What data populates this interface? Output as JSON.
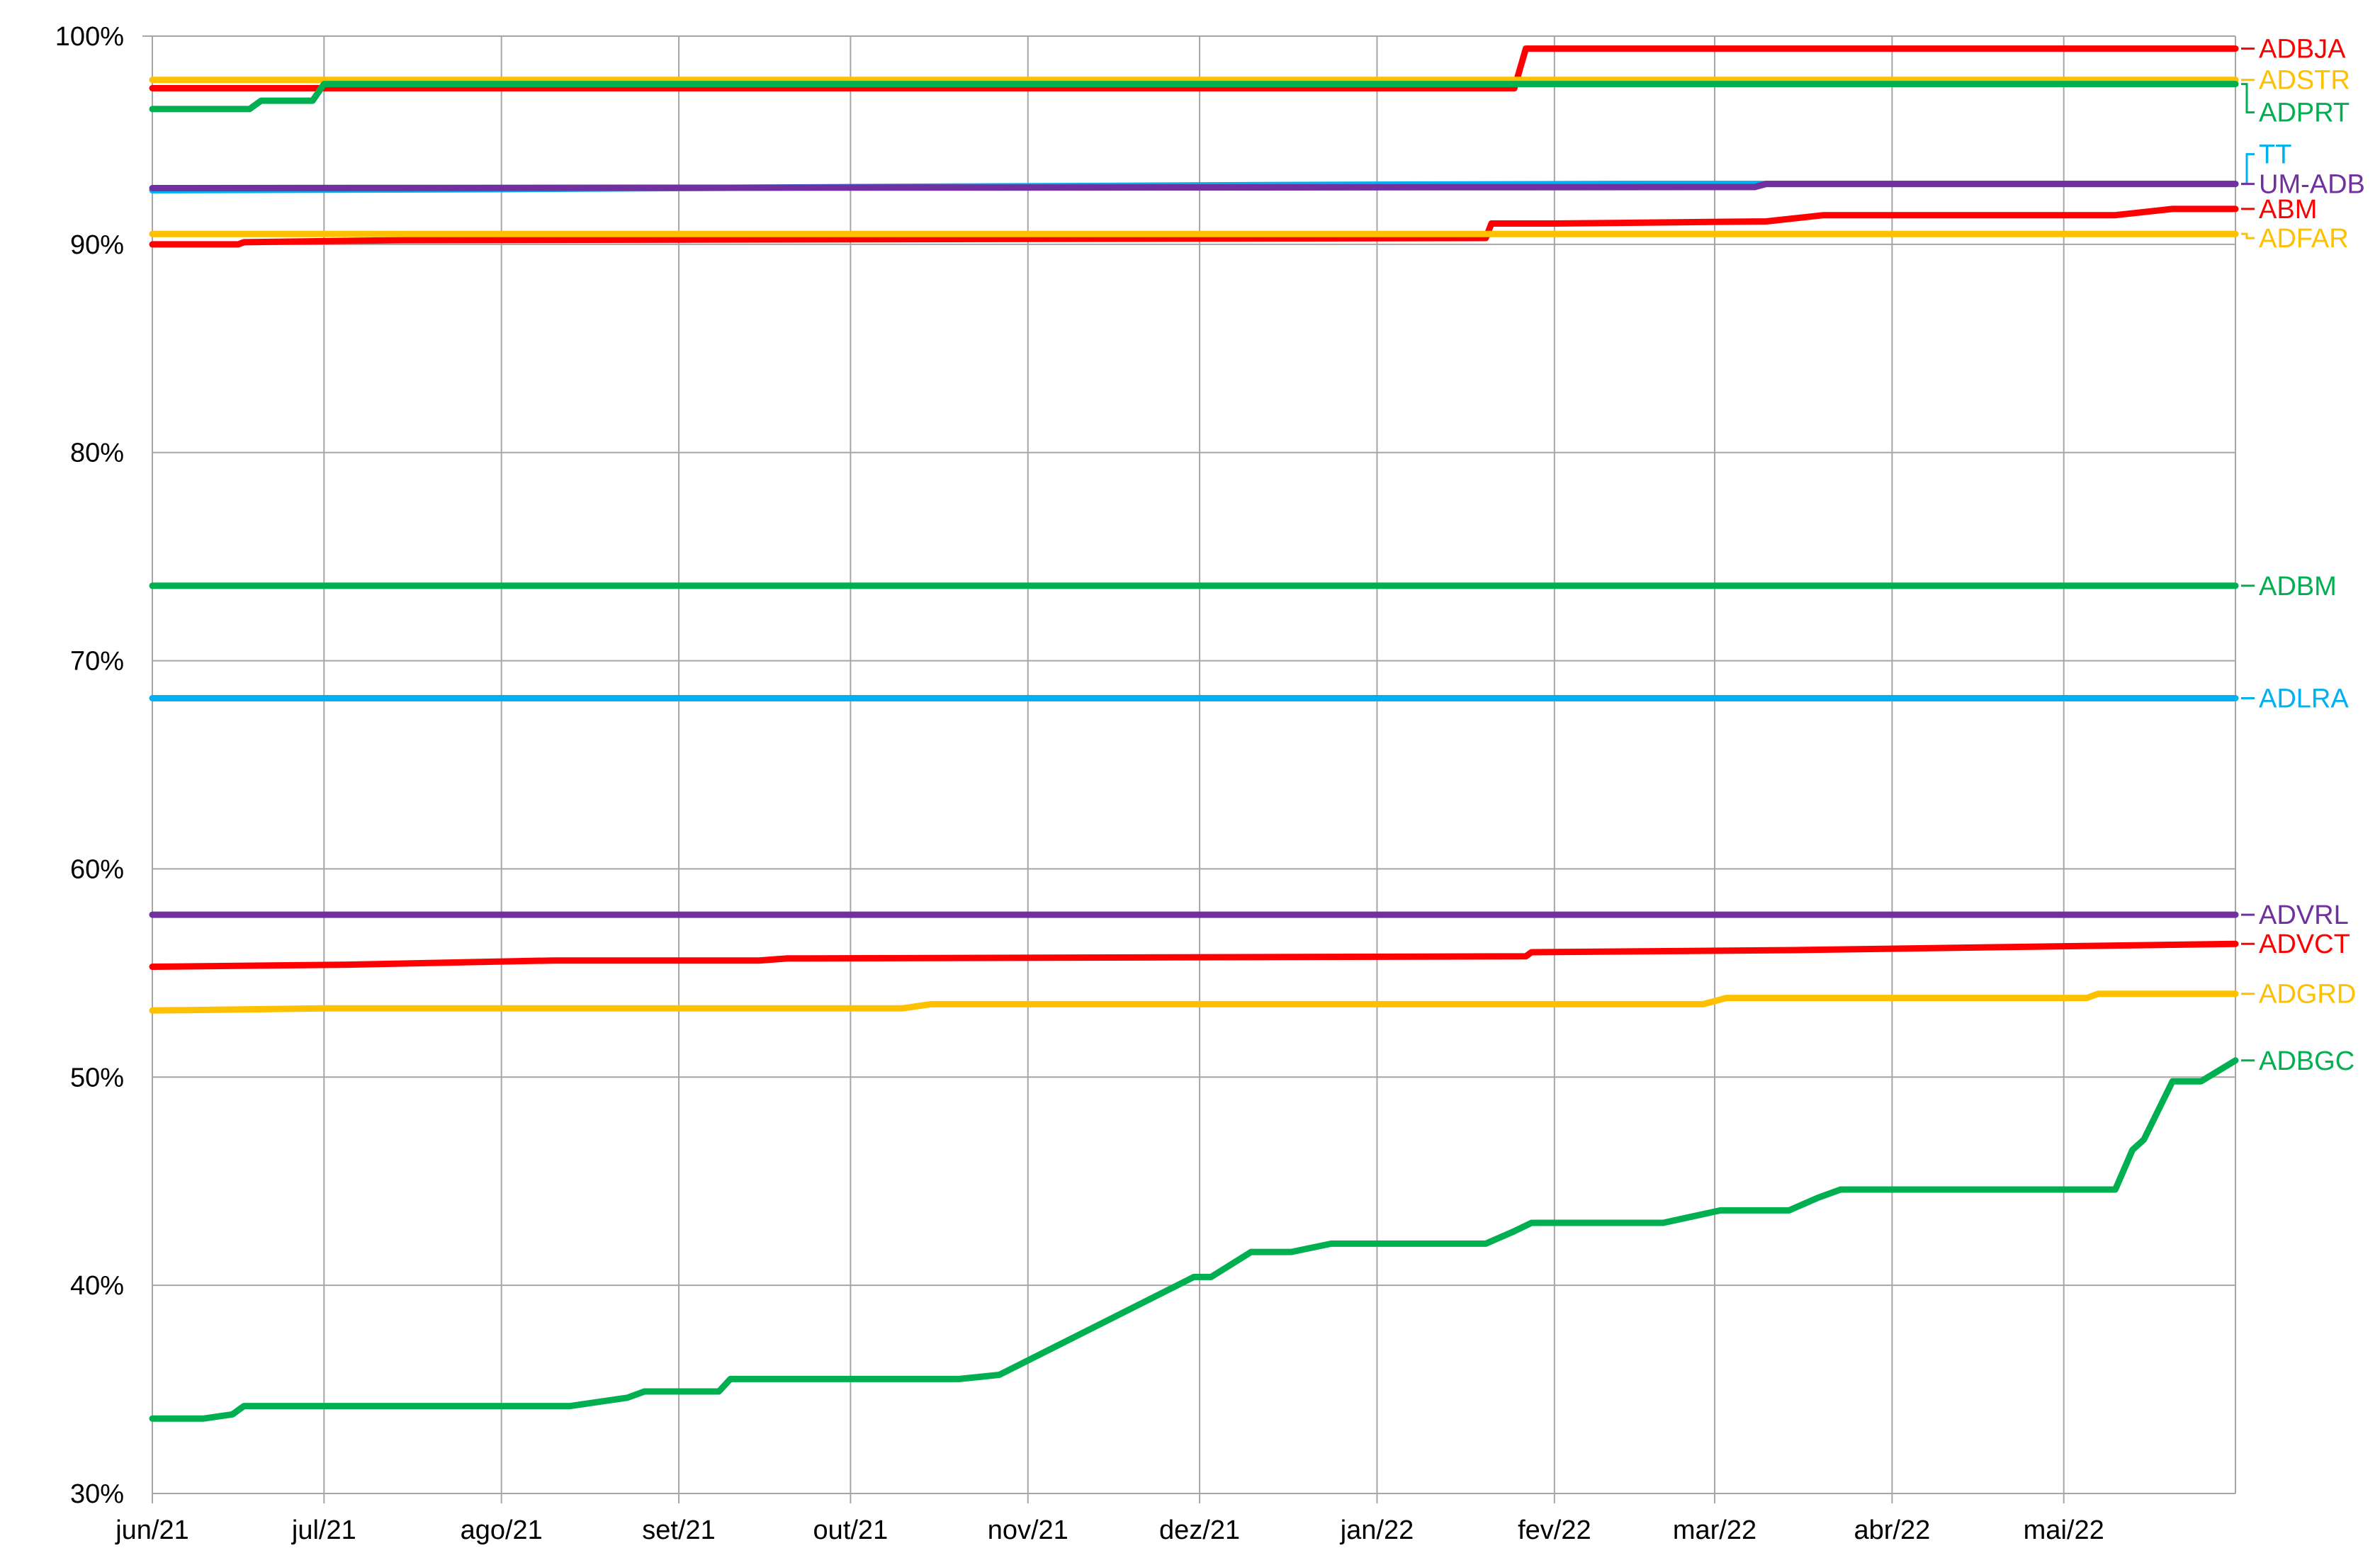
{
  "chart_data": {
    "type": "line",
    "title": "",
    "xlabel": "",
    "ylabel": "",
    "x_ticks": [
      "jun/21",
      "jul/21",
      "ago/21",
      "set/21",
      "out/21",
      "nov/21",
      "dez/21",
      "jan/22",
      "fev/22",
      "mar/22",
      "abr/22",
      "mai/22"
    ],
    "x_range": [
      "2021-06-01",
      "2022-05-31"
    ],
    "y_ticks": [
      "30%",
      "40%",
      "50%",
      "60%",
      "70%",
      "80%",
      "90%",
      "100%"
    ],
    "ylim": [
      30,
      100
    ],
    "grid": true,
    "legend": "right-end-labels",
    "series": [
      {
        "name": "ADBJA",
        "color": "#ff0000",
        "points": [
          [
            "2021-06-01",
            97.5
          ],
          [
            "2022-01-25",
            97.5
          ],
          [
            "2022-01-27",
            99.4
          ],
          [
            "2022-05-31",
            99.4
          ]
        ]
      },
      {
        "name": "ADSTR",
        "color": "#ffc000",
        "points": [
          [
            "2021-06-01",
            97.9
          ],
          [
            "2022-05-31",
            97.9
          ]
        ]
      },
      {
        "name": "ADPRT",
        "color": "#00b050",
        "points": [
          [
            "2021-06-01",
            96.5
          ],
          [
            "2021-06-18",
            96.5
          ],
          [
            "2021-06-20",
            96.9
          ],
          [
            "2021-06-29",
            96.9
          ],
          [
            "2021-07-01",
            97.7
          ],
          [
            "2022-05-31",
            97.7
          ]
        ]
      },
      {
        "name": "TT",
        "color": "#00b0f0",
        "points": [
          [
            "2021-06-01",
            92.6
          ],
          [
            "2021-08-01",
            92.65
          ],
          [
            "2021-10-01",
            92.75
          ],
          [
            "2021-12-15",
            92.85
          ],
          [
            "2022-02-15",
            92.9
          ],
          [
            "2022-05-31",
            92.9
          ]
        ]
      },
      {
        "name": "UM-ADB",
        "color": "#7030a0",
        "points": [
          [
            "2021-06-01",
            92.7
          ],
          [
            "2022-03-08",
            92.75
          ],
          [
            "2022-03-10",
            92.9
          ],
          [
            "2022-05-31",
            92.9
          ]
        ]
      },
      {
        "name": "ABM",
        "color": "#ff0000",
        "points": [
          [
            "2021-06-01",
            90.0
          ],
          [
            "2021-06-16",
            90.0
          ],
          [
            "2021-06-17",
            90.1
          ],
          [
            "2021-07-15",
            90.2
          ],
          [
            "2022-01-20",
            90.3
          ],
          [
            "2022-01-21",
            91.0
          ],
          [
            "2022-02-01",
            91.0
          ],
          [
            "2022-03-10",
            91.1
          ],
          [
            "2022-03-20",
            91.4
          ],
          [
            "2022-05-10",
            91.4
          ],
          [
            "2022-05-20",
            91.7
          ],
          [
            "2022-05-31",
            91.7
          ]
        ]
      },
      {
        "name": "ADFAR",
        "color": "#ffc000",
        "points": [
          [
            "2021-06-01",
            90.5
          ],
          [
            "2022-05-31",
            90.5
          ]
        ]
      },
      {
        "name": "ADBM",
        "color": "#00b050",
        "points": [
          [
            "2021-06-01",
            73.6
          ],
          [
            "2022-05-31",
            73.6
          ]
        ]
      },
      {
        "name": "ADLRA",
        "color": "#00b0f0",
        "points": [
          [
            "2021-06-01",
            68.2
          ],
          [
            "2022-05-31",
            68.2
          ]
        ]
      },
      {
        "name": "ADVRL",
        "color": "#7030a0",
        "points": [
          [
            "2021-06-01",
            57.8
          ],
          [
            "2022-05-31",
            57.8
          ]
        ]
      },
      {
        "name": "ADVCT",
        "color": "#ff0000",
        "points": [
          [
            "2021-06-01",
            55.3
          ],
          [
            "2021-07-05",
            55.4
          ],
          [
            "2021-08-10",
            55.6
          ],
          [
            "2021-09-15",
            55.6
          ],
          [
            "2021-09-20",
            55.7
          ],
          [
            "2022-01-27",
            55.8
          ],
          [
            "2022-01-28",
            56.0
          ],
          [
            "2022-03-15",
            56.1
          ],
          [
            "2022-05-31",
            56.4
          ]
        ]
      },
      {
        "name": "ADGRD",
        "color": "#ffc000",
        "points": [
          [
            "2021-06-01",
            53.2
          ],
          [
            "2021-07-01",
            53.3
          ],
          [
            "2021-10-10",
            53.3
          ],
          [
            "2021-10-15",
            53.5
          ],
          [
            "2022-02-27",
            53.5
          ],
          [
            "2022-03-03",
            53.8
          ],
          [
            "2022-05-05",
            53.8
          ],
          [
            "2022-05-07",
            54.0
          ],
          [
            "2022-05-31",
            54.0
          ]
        ]
      },
      {
        "name": "ADBGC",
        "color": "#00b050",
        "points": [
          [
            "2021-06-01",
            33.6
          ],
          [
            "2021-06-10",
            33.6
          ],
          [
            "2021-06-15",
            33.8
          ],
          [
            "2021-06-17",
            34.2
          ],
          [
            "2021-08-13",
            34.2
          ],
          [
            "2021-08-23",
            34.6
          ],
          [
            "2021-08-26",
            34.9
          ],
          [
            "2021-09-08",
            34.9
          ],
          [
            "2021-09-10",
            35.5
          ],
          [
            "2021-10-20",
            35.5
          ],
          [
            "2021-10-27",
            35.7
          ],
          [
            "2021-11-30",
            40.4
          ],
          [
            "2021-12-03",
            40.4
          ],
          [
            "2021-12-10",
            41.6
          ],
          [
            "2021-12-17",
            41.6
          ],
          [
            "2021-12-24",
            42.0
          ],
          [
            "2022-01-20",
            42.0
          ],
          [
            "2022-01-25",
            42.6
          ],
          [
            "2022-01-28",
            43.0
          ],
          [
            "2022-02-20",
            43.0
          ],
          [
            "2022-02-25",
            43.3
          ],
          [
            "2022-03-02",
            43.6
          ],
          [
            "2022-03-14",
            43.6
          ],
          [
            "2022-03-19",
            44.2
          ],
          [
            "2022-03-23",
            44.6
          ],
          [
            "2022-05-10",
            44.6
          ],
          [
            "2022-05-13",
            46.5
          ],
          [
            "2022-05-15",
            47.0
          ],
          [
            "2022-05-20",
            49.8
          ],
          [
            "2022-05-25",
            49.8
          ],
          [
            "2022-05-31",
            50.8
          ]
        ]
      }
    ]
  }
}
